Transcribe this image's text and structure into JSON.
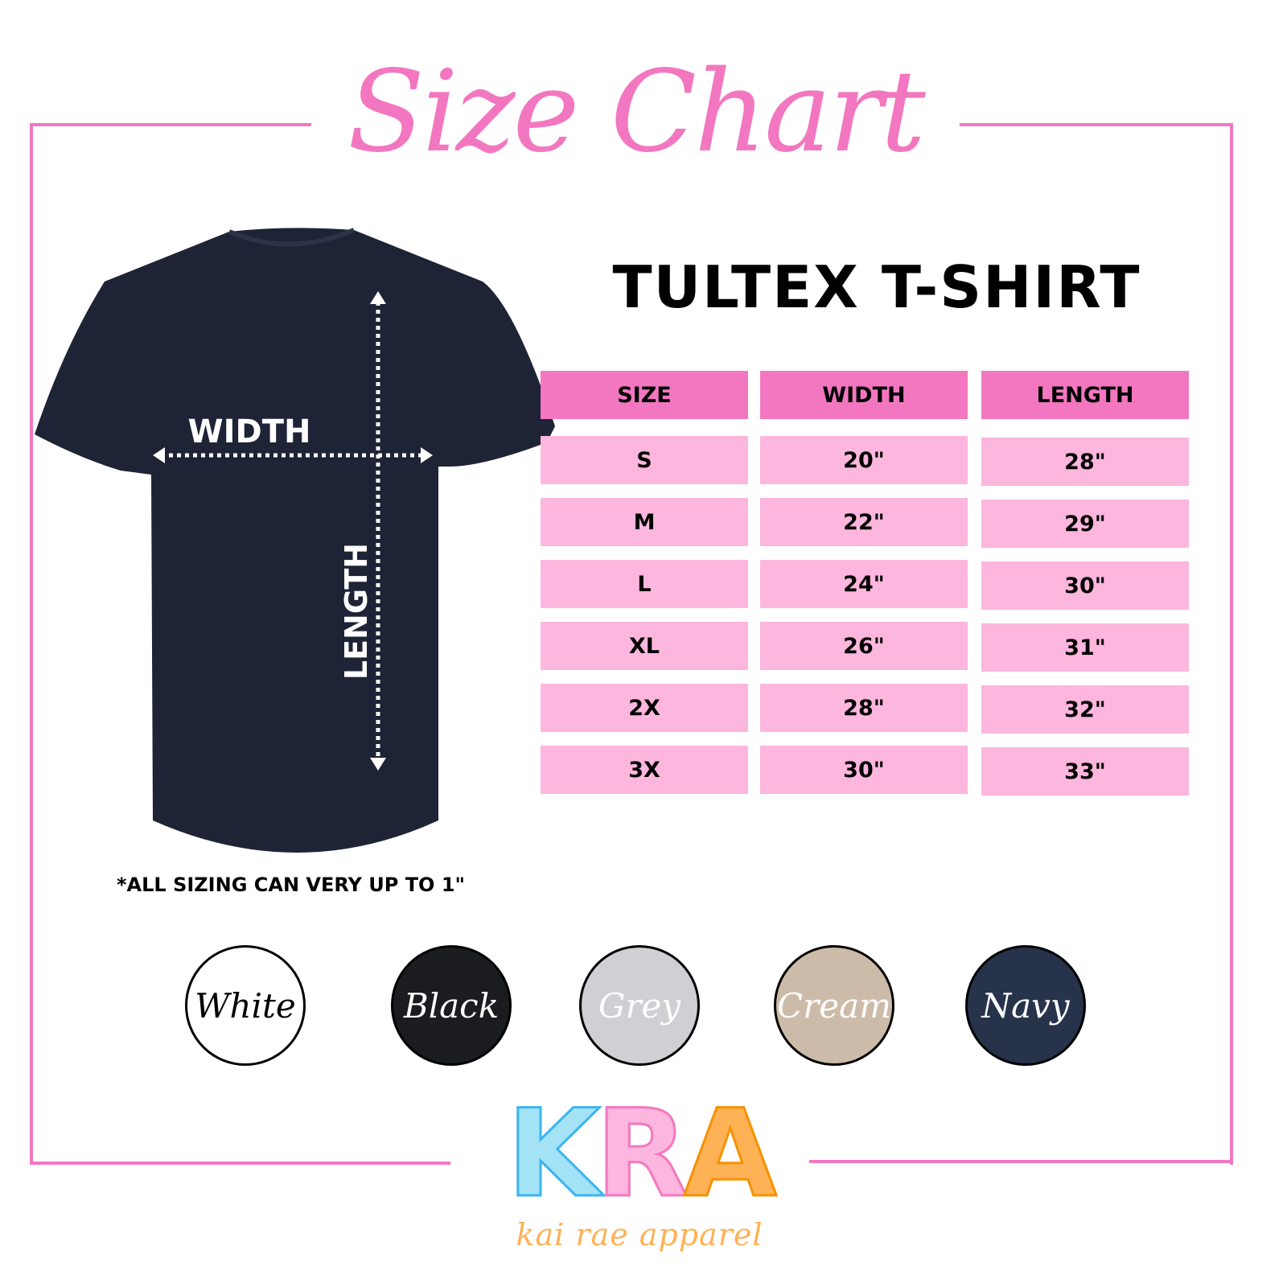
{
  "title": "Size Chart",
  "product": "TULTEX T-SHIRT",
  "table": {
    "headers": [
      "SIZE",
      "WIDTH",
      "LENGTH"
    ],
    "rows": [
      [
        "S",
        "20\"",
        "28\""
      ],
      [
        "M",
        "22\"",
        "29\""
      ],
      [
        "L",
        "24\"",
        "30\""
      ],
      [
        "XL",
        "26\"",
        "31\""
      ],
      [
        "2X",
        "28\"",
        "32\""
      ],
      [
        "3X",
        "30\"",
        "33\""
      ]
    ]
  },
  "shirt": {
    "width_label": "WIDTH",
    "length_label": "LENGTH",
    "color": "#1e2336"
  },
  "note": "*ALL SIZING CAN VERY UP TO 1\"",
  "swatches": [
    {
      "label": "White",
      "color": "#ffffff",
      "text_color": "#000000"
    },
    {
      "label": "Black",
      "color": "#1b1c20",
      "text_color": "#ffffff"
    },
    {
      "label": "Grey",
      "color": "#cfcfd4",
      "text_color": "#ffffff"
    },
    {
      "label": "Cream",
      "color": "#cdbba9",
      "text_color": "#ffffff"
    },
    {
      "label": "Navy",
      "color": "#26334a",
      "text_color": "#ffffff"
    }
  ],
  "logo": {
    "letters": [
      "K",
      "R",
      "A"
    ],
    "tagline": "kai rae apparel",
    "colors": [
      "#a3e3f5",
      "#fdb6dd",
      "#ffb155"
    ]
  },
  "colors": {
    "accent": "#f277c0",
    "row": "#fdb6dd"
  }
}
